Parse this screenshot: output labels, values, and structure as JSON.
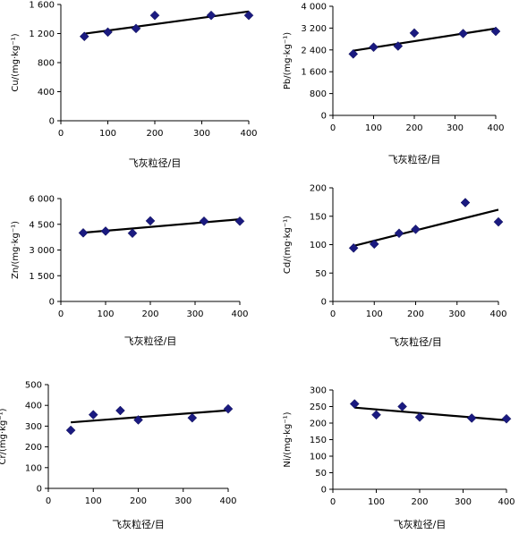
{
  "chart_data": [
    {
      "type": "scatter",
      "xlabel": "飞灰粒径/目",
      "ylabel": "Cu/(mg·kg⁻¹)",
      "xlim": [
        0,
        400
      ],
      "xticks": [
        0,
        100,
        200,
        300,
        400
      ],
      "xtick_labels": [
        "0",
        "100",
        "200",
        "300",
        "400"
      ],
      "ylim": [
        0,
        1600
      ],
      "yticks": [
        0,
        400,
        800,
        1200,
        1600
      ],
      "ytick_labels": [
        "0",
        "400",
        "800",
        "1 200",
        "1 600"
      ],
      "trendline": "linear",
      "grid": false,
      "legend": "none",
      "x": [
        50,
        100,
        160,
        200,
        320,
        400
      ],
      "y": [
        1160,
        1220,
        1270,
        1450,
        1450,
        1450
      ]
    },
    {
      "type": "scatter",
      "xlabel": "飞灰粒径/目",
      "ylabel": "Pb/(mg·kg⁻¹)",
      "xlim": [
        0,
        400
      ],
      "xticks": [
        0,
        100,
        200,
        300,
        400
      ],
      "xtick_labels": [
        "0",
        "100",
        "200",
        "300",
        "400"
      ],
      "ylim": [
        0,
        4000
      ],
      "yticks": [
        0,
        800,
        1600,
        2400,
        3200,
        4000
      ],
      "ytick_labels": [
        "0",
        "800",
        "1 600",
        "2 400",
        "3 200",
        "4 000"
      ],
      "trendline": "linear",
      "grid": false,
      "legend": "none",
      "x": [
        50,
        100,
        160,
        200,
        320,
        400
      ],
      "y": [
        2250,
        2500,
        2540,
        3020,
        3000,
        3080
      ]
    },
    {
      "type": "scatter",
      "xlabel": "飞灰粒径/目",
      "ylabel": "Zn/(mg·kg⁻¹)",
      "xlim": [
        0,
        400
      ],
      "xticks": [
        0,
        100,
        200,
        300,
        400
      ],
      "xtick_labels": [
        "0",
        "100",
        "200",
        "300",
        "400"
      ],
      "ylim": [
        0,
        6000
      ],
      "yticks": [
        0,
        1500,
        3000,
        4500,
        6000
      ],
      "ytick_labels": [
        "0",
        "1 500",
        "3 000",
        "4 500",
        "6 000"
      ],
      "trendline": "linear",
      "grid": false,
      "legend": "none",
      "x": [
        50,
        100,
        160,
        200,
        320,
        400
      ],
      "y": [
        4000,
        4100,
        3980,
        4700,
        4680,
        4680
      ]
    },
    {
      "type": "scatter",
      "xlabel": "飞灰粒径/目",
      "ylabel": "Cd/(mg·kg⁻¹)",
      "xlim": [
        0,
        400
      ],
      "xticks": [
        0,
        100,
        200,
        300,
        400
      ],
      "xtick_labels": [
        "0",
        "100",
        "200",
        "300",
        "400"
      ],
      "ylim": [
        0,
        200
      ],
      "yticks": [
        0,
        50,
        100,
        150,
        200
      ],
      "ytick_labels": [
        "0",
        "50",
        "100",
        "150",
        "200"
      ],
      "trendline": "linear",
      "grid": false,
      "legend": "none",
      "x": [
        50,
        100,
        160,
        200,
        320,
        400
      ],
      "y": [
        94,
        101,
        120,
        127,
        174,
        140
      ]
    },
    {
      "type": "scatter",
      "xlabel": "飞灰粒径/目",
      "ylabel": "Cr/(mg·kg⁻¹)",
      "xlim": [
        0,
        400
      ],
      "xticks": [
        0,
        100,
        200,
        300,
        400
      ],
      "xtick_labels": [
        "0",
        "100",
        "200",
        "300",
        "400"
      ],
      "ylim": [
        0,
        500
      ],
      "yticks": [
        0,
        100,
        200,
        300,
        400,
        500
      ],
      "ytick_labels": [
        "0",
        "100",
        "200",
        "300",
        "400",
        "500"
      ],
      "trendline": "linear",
      "grid": false,
      "legend": "none",
      "x": [
        50,
        100,
        160,
        200,
        320,
        400
      ],
      "y": [
        280,
        355,
        375,
        330,
        340,
        383
      ]
    },
    {
      "type": "scatter",
      "xlabel": "飞灰粒径/目",
      "ylabel": "Ni/(mg·kg⁻¹)",
      "xlim": [
        0,
        400
      ],
      "xticks": [
        0,
        100,
        200,
        300,
        400
      ],
      "xtick_labels": [
        "0",
        "100",
        "200",
        "300",
        "400"
      ],
      "ylim": [
        0,
        300
      ],
      "yticks": [
        0,
        50,
        100,
        150,
        200,
        250,
        300
      ],
      "ytick_labels": [
        "0",
        "50",
        "100",
        "150",
        "200",
        "250",
        "300"
      ],
      "trendline": "linear",
      "grid": false,
      "legend": "none",
      "x": [
        50,
        100,
        160,
        200,
        320,
        400
      ],
      "y": [
        258,
        225,
        250,
        218,
        215,
        213
      ]
    }
  ],
  "colors": {
    "marker": "#1a1a80",
    "trendline": "#000000",
    "axis": "#000000"
  }
}
